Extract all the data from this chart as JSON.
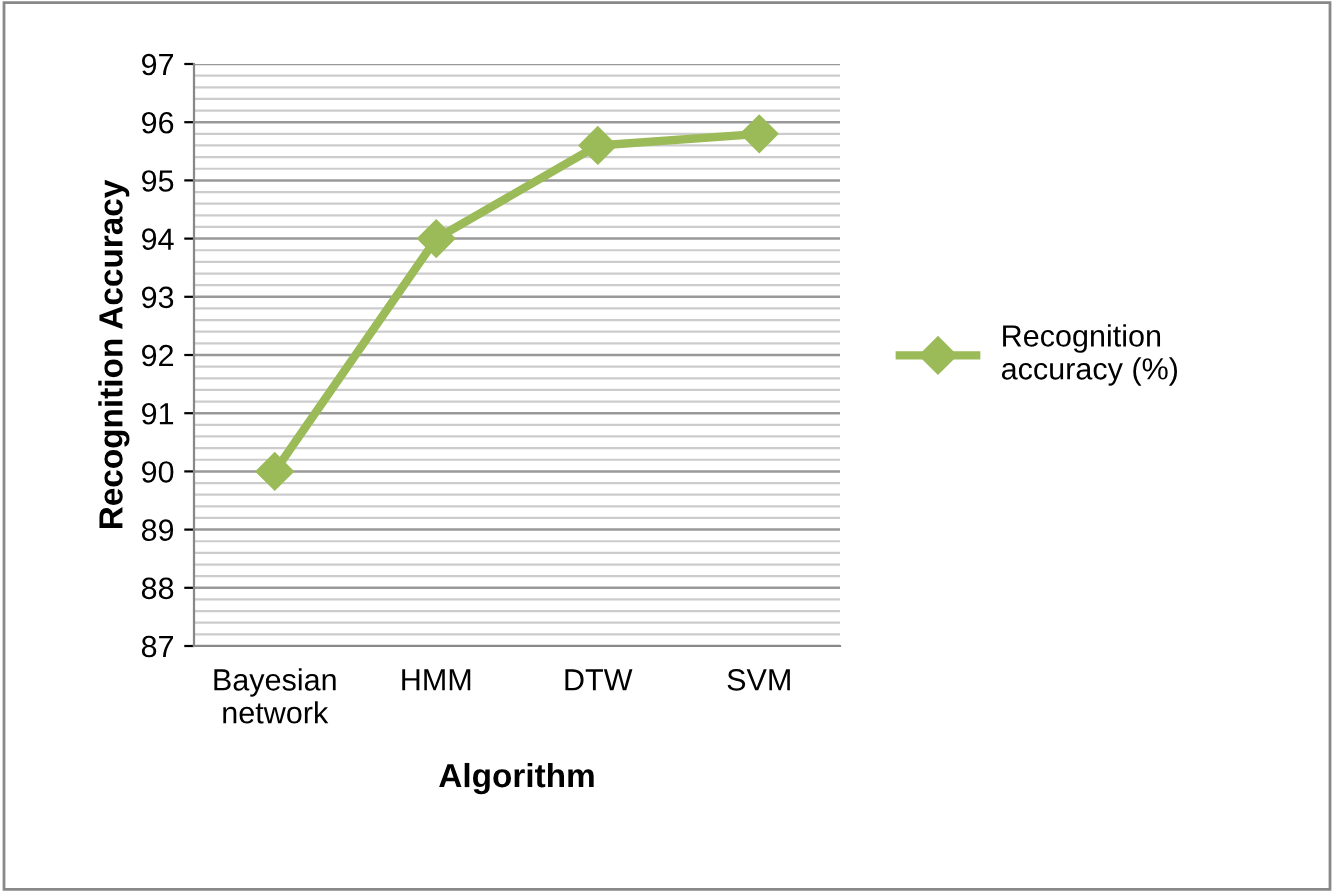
{
  "chart_data": {
    "type": "line",
    "xlabel": "Algorithm",
    "ylabel": "Recognition Accuracy",
    "categories": [
      "Bayesian\nnetwork",
      "HMM",
      "DTW",
      "SVM"
    ],
    "series": [
      {
        "name": "Recognition\naccuracy (%)",
        "color": "#9bbb59",
        "values": [
          90,
          94,
          95.6,
          95.8
        ]
      }
    ],
    "ylim": [
      87,
      97
    ],
    "yticks": [
      87,
      88,
      89,
      90,
      91,
      92,
      93,
      94,
      95,
      96,
      97
    ],
    "grid": "y",
    "legend": "right",
    "marker": "diamond",
    "line_style": "solid"
  }
}
